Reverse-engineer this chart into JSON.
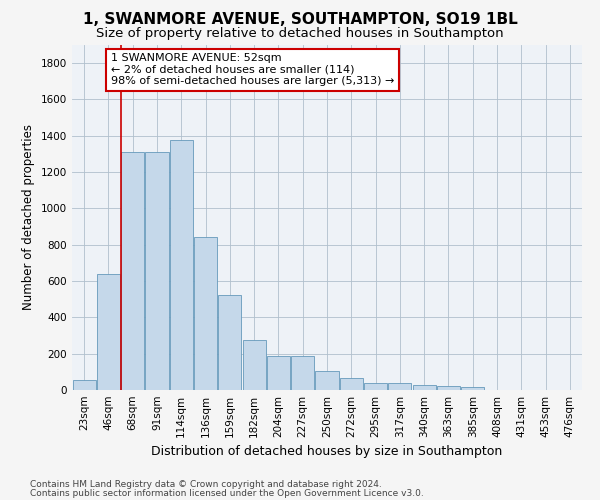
{
  "title": "1, SWANMORE AVENUE, SOUTHAMPTON, SO19 1BL",
  "subtitle": "Size of property relative to detached houses in Southampton",
  "xlabel": "Distribution of detached houses by size in Southampton",
  "ylabel": "Number of detached properties",
  "categories": [
    "23sqm",
    "46sqm",
    "68sqm",
    "91sqm",
    "114sqm",
    "136sqm",
    "159sqm",
    "182sqm",
    "204sqm",
    "227sqm",
    "250sqm",
    "272sqm",
    "295sqm",
    "317sqm",
    "340sqm",
    "363sqm",
    "385sqm",
    "408sqm",
    "431sqm",
    "453sqm",
    "476sqm"
  ],
  "values": [
    55,
    640,
    1310,
    1310,
    1375,
    845,
    525,
    275,
    185,
    185,
    105,
    65,
    38,
    38,
    28,
    22,
    15,
    0,
    0,
    0,
    0
  ],
  "bar_color": "#c5d8ea",
  "bar_edge_color": "#6699bb",
  "property_line_x": 1.5,
  "annotation_text": "1 SWANMORE AVENUE: 52sqm\n← 2% of detached houses are smaller (114)\n98% of semi-detached houses are larger (5,313) →",
  "annotation_box_color": "#ffffff",
  "annotation_box_edge_color": "#cc0000",
  "vline_color": "#cc0000",
  "ylim": [
    0,
    1900
  ],
  "yticks": [
    0,
    200,
    400,
    600,
    800,
    1000,
    1200,
    1400,
    1600,
    1800
  ],
  "footer_line1": "Contains HM Land Registry data © Crown copyright and database right 2024.",
  "footer_line2": "Contains public sector information licensed under the Open Government Licence v3.0.",
  "background_color": "#eef2f7",
  "grid_color": "#b0bfcc",
  "title_fontsize": 11,
  "subtitle_fontsize": 9.5,
  "xlabel_fontsize": 9,
  "ylabel_fontsize": 8.5,
  "tick_fontsize": 7.5,
  "footer_fontsize": 6.5,
  "annotation_fontsize": 8
}
